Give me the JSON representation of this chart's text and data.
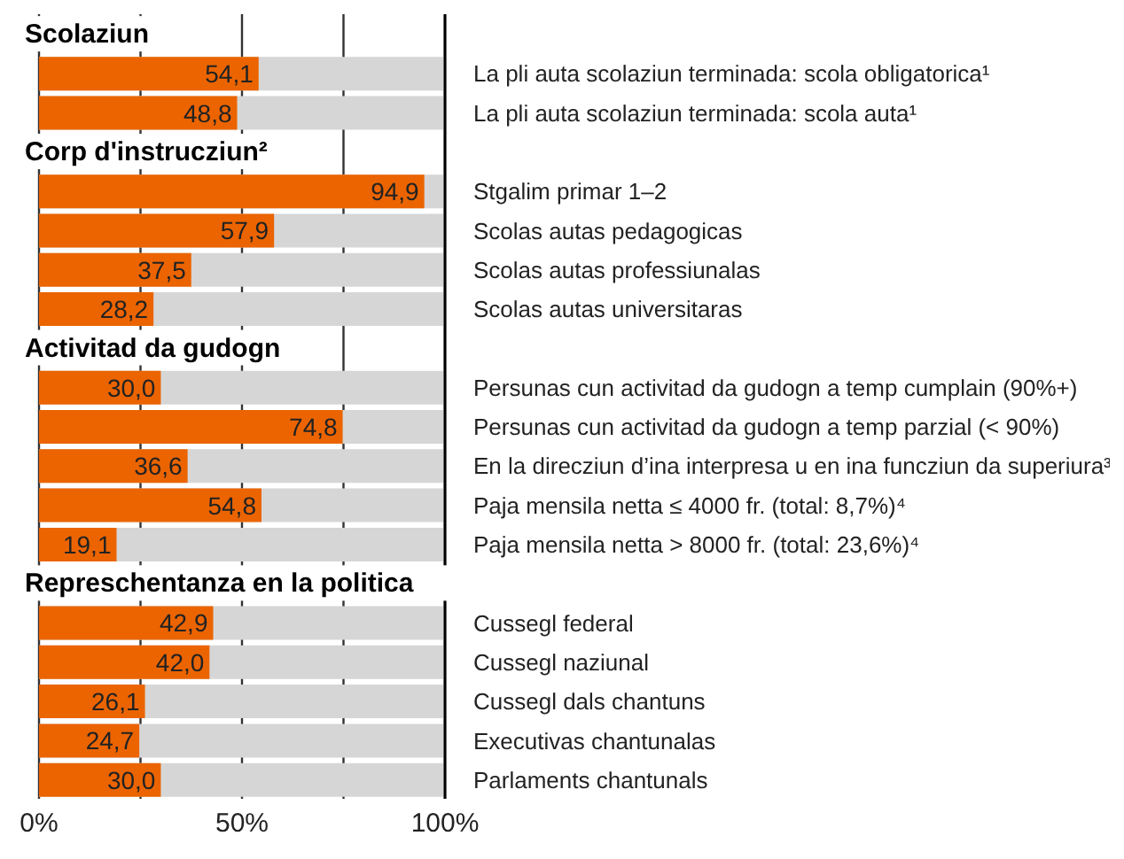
{
  "chart_data": {
    "type": "bar",
    "orientation": "horizontal",
    "categories": [
      "Scolaziun",
      "La pli auta scolaziun terminada: scola obligatorica¹",
      "La pli auta scolaziun terminada: scola auta¹",
      "Corp d'instrucziun²",
      "Stgalim primar 1–2",
      "Scolas autas pedagogicas",
      "Scolas autas professiunalas",
      "Scolas autas universitaras",
      "Activitad da gudogn",
      "Persunas cun activitad da gudogn a temp cumplain (90%+)",
      "Persunas cun activitad da gudogn a temp parzial (< 90%)",
      "En la direcziun d’ina interpresa u en ina funcziun da superiura³",
      "Paja mensila netta ≤ 4000 fr. (total: 8,7%)⁴",
      "Paja mensila netta > 8000 fr. (total: 23,6%)⁴",
      "Represchentanza en la politica",
      "Cussegl federal",
      "Cussegl naziunal",
      "Cussegl dals chantuns",
      "Executivas chantunalas",
      "Parlaments chantunals"
    ],
    "values": [
      null,
      54.1,
      48.8,
      null,
      94.9,
      57.9,
      37.5,
      28.2,
      null,
      30.0,
      74.8,
      36.6,
      54.8,
      19.1,
      null,
      42.9,
      42.0,
      26.1,
      24.7,
      30.0
    ],
    "value_labels": [
      null,
      "54,1",
      "48,8",
      null,
      "94,9",
      "57,9",
      "37,5",
      "28,2",
      null,
      "30,0",
      "74,8",
      "36,6",
      "54,8",
      "19,1",
      null,
      "42,9",
      "42,0",
      "26,1",
      "24,7",
      "30,0"
    ],
    "color": "#eb6400",
    "xlim": [
      0,
      100
    ],
    "xticks": [
      {
        "value": 0,
        "label": "0%"
      },
      {
        "value": 25,
        "label": null
      },
      {
        "value": 50,
        "label": "50%"
      },
      {
        "value": 75,
        "label": null
      },
      {
        "value": 100,
        "label": "100%"
      }
    ],
    "grid": "x"
  }
}
